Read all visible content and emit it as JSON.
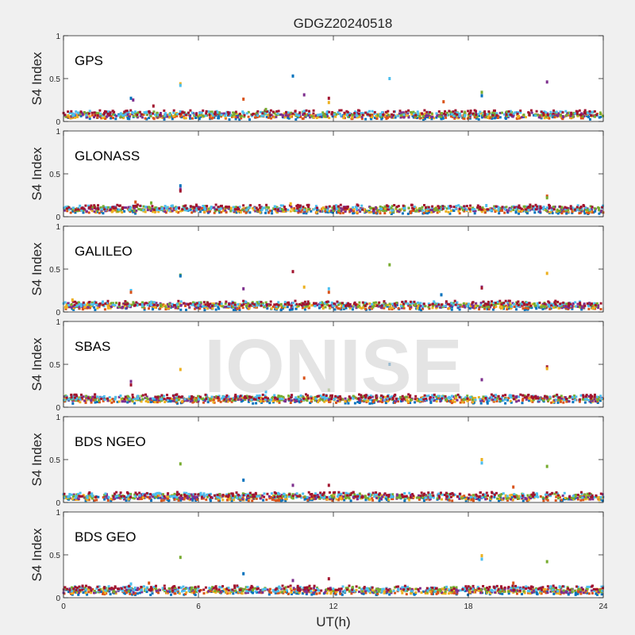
{
  "figure_title": "GDGZ20240518",
  "watermark": "IONISE",
  "colors": {
    "background": "#f0f0f0",
    "axes_face": "#ffffff",
    "axis": "#262626",
    "watermark": "#d9d9d9",
    "series": [
      "#0072bd",
      "#d95319",
      "#edb120",
      "#7e2f8e",
      "#77ac30",
      "#4dbeee",
      "#a2142f"
    ]
  },
  "chart_data": [
    {
      "type": "scatter",
      "panel_label": "GPS",
      "xlabel": "",
      "ylabel": "S4 Index",
      "xlim": [
        0,
        24
      ],
      "ylim": [
        0,
        1
      ],
      "xticks": [
        0,
        6,
        12,
        18,
        24
      ],
      "yticks": [
        0,
        0.5,
        1
      ],
      "x_tick_labels_shown": false,
      "baseline": 0.08,
      "spikes": [
        [
          3.0,
          0.27
        ],
        [
          3.1,
          0.25
        ],
        [
          4.0,
          0.18
        ],
        [
          5.2,
          0.44
        ],
        [
          5.2,
          0.42
        ],
        [
          8.0,
          0.26
        ],
        [
          9.0,
          0.14
        ],
        [
          10.2,
          0.53
        ],
        [
          10.7,
          0.31
        ],
        [
          11.8,
          0.27
        ],
        [
          11.8,
          0.22
        ],
        [
          14.5,
          0.5
        ],
        [
          16.9,
          0.23
        ],
        [
          18.6,
          0.34
        ],
        [
          18.6,
          0.3
        ],
        [
          21.5,
          0.46
        ]
      ]
    },
    {
      "type": "scatter",
      "panel_label": "GLONASS",
      "xlabel": "",
      "ylabel": "S4 Index",
      "xlim": [
        0,
        24
      ],
      "ylim": [
        0,
        1
      ],
      "xticks": [
        0,
        6,
        12,
        18,
        24
      ],
      "yticks": [
        0,
        0.5,
        1
      ],
      "x_tick_labels_shown": false,
      "baseline": 0.09,
      "spikes": [
        [
          3.2,
          0.17
        ],
        [
          3.9,
          0.16
        ],
        [
          5.2,
          0.36
        ],
        [
          5.2,
          0.32
        ],
        [
          5.2,
          0.3
        ],
        [
          10.1,
          0.15
        ],
        [
          18.8,
          0.13
        ],
        [
          21.5,
          0.24
        ],
        [
          21.5,
          0.22
        ]
      ]
    },
    {
      "type": "scatter",
      "panel_label": "GALILEO",
      "xlabel": "",
      "ylabel": "S4 Index",
      "xlim": [
        0,
        24
      ],
      "ylim": [
        0,
        1
      ],
      "xticks": [
        0,
        6,
        12,
        18,
        24
      ],
      "yticks": [
        0,
        0.5,
        1
      ],
      "x_tick_labels_shown": false,
      "baseline": 0.08,
      "spikes": [
        [
          0.4,
          0.14
        ],
        [
          3.0,
          0.25
        ],
        [
          3.0,
          0.23
        ],
        [
          5.2,
          0.43
        ],
        [
          5.2,
          0.42
        ],
        [
          8.0,
          0.27
        ],
        [
          10.2,
          0.47
        ],
        [
          10.7,
          0.29
        ],
        [
          11.8,
          0.27
        ],
        [
          11.8,
          0.23
        ],
        [
          14.5,
          0.55
        ],
        [
          16.8,
          0.2
        ],
        [
          18.6,
          0.29
        ],
        [
          18.6,
          0.28
        ],
        [
          21.5,
          0.45
        ]
      ]
    },
    {
      "type": "scatter",
      "panel_label": "SBAS",
      "xlabel": "",
      "ylabel": "S4 Index",
      "xlim": [
        0,
        24
      ],
      "ylim": [
        0,
        1
      ],
      "xticks": [
        0,
        6,
        12,
        18,
        24
      ],
      "yticks": [
        0,
        0.5,
        1
      ],
      "x_tick_labels_shown": false,
      "baseline": 0.1,
      "spikes": [
        [
          3.0,
          0.3
        ],
        [
          3.0,
          0.26
        ],
        [
          5.2,
          0.44
        ],
        [
          9.0,
          0.18
        ],
        [
          10.7,
          0.34
        ],
        [
          11.8,
          0.2
        ],
        [
          14.5,
          0.5
        ],
        [
          18.6,
          0.32
        ],
        [
          21.5,
          0.47
        ],
        [
          21.5,
          0.45
        ]
      ]
    },
    {
      "type": "scatter",
      "panel_label": "BDS NGEO",
      "xlabel": "",
      "ylabel": "S4 Index",
      "xlim": [
        0,
        24
      ],
      "ylim": [
        0,
        1
      ],
      "xticks": [
        0,
        6,
        12,
        18,
        24
      ],
      "yticks": [
        0,
        0.5,
        1
      ],
      "x_tick_labels_shown": false,
      "baseline": 0.07,
      "spikes": [
        [
          5.2,
          0.45
        ],
        [
          8.0,
          0.26
        ],
        [
          10.2,
          0.2
        ],
        [
          11.8,
          0.2
        ],
        [
          18.6,
          0.5
        ],
        [
          18.6,
          0.46
        ],
        [
          20.0,
          0.18
        ],
        [
          21.5,
          0.42
        ]
      ]
    },
    {
      "type": "scatter",
      "panel_label": "BDS GEO",
      "xlabel": "UT(h)",
      "ylabel": "S4 Index",
      "xlim": [
        0,
        24
      ],
      "ylim": [
        0,
        1
      ],
      "xticks": [
        0,
        6,
        12,
        18,
        24
      ],
      "yticks": [
        0,
        0.5,
        1
      ],
      "x_tick_labels_shown": true,
      "baseline": 0.09,
      "spikes": [
        [
          3.0,
          0.16
        ],
        [
          3.8,
          0.17
        ],
        [
          5.2,
          0.47
        ],
        [
          8.0,
          0.28
        ],
        [
          10.2,
          0.2
        ],
        [
          11.8,
          0.22
        ],
        [
          18.6,
          0.49
        ],
        [
          18.6,
          0.45
        ],
        [
          20.0,
          0.17
        ],
        [
          21.5,
          0.42
        ]
      ]
    }
  ]
}
